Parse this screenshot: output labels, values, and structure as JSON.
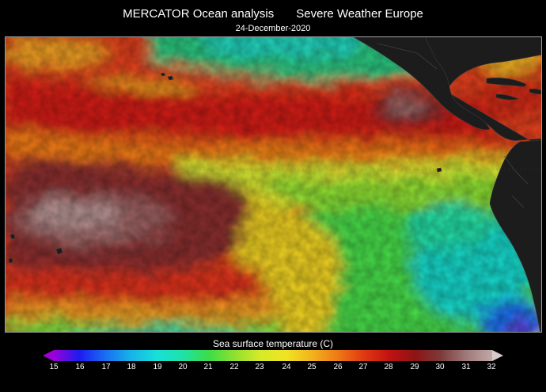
{
  "header": {
    "title_left": "MERCATOR Ocean analysis",
    "title_right": "Severe Weather Europe",
    "date": "24-December-2020"
  },
  "map": {
    "type": "sea surface temperature field",
    "region": "Eastern / Central Pacific Ocean",
    "land_color": "#1c1c1c",
    "border_color": "#9a9a9a"
  },
  "colorbar": {
    "title": "Sea surface temperature (C)",
    "min": 15,
    "max": 32,
    "ticks": [
      "15",
      "16",
      "17",
      "18",
      "19",
      "20",
      "21",
      "22",
      "23",
      "24",
      "25",
      "26",
      "27",
      "28",
      "29",
      "30",
      "31",
      "32"
    ],
    "colors": [
      "#9b00d6",
      "#1c1cf0",
      "#1a6ef2",
      "#16b4e8",
      "#18e0d8",
      "#1ee2a8",
      "#3cdc4a",
      "#8ee030",
      "#d6ea28",
      "#f0e424",
      "#f2b41c",
      "#ee7a16",
      "#e03a12",
      "#c21212",
      "#8e1414",
      "#7c3a3a",
      "#a07a7a",
      "#c2a8a8"
    ]
  }
}
